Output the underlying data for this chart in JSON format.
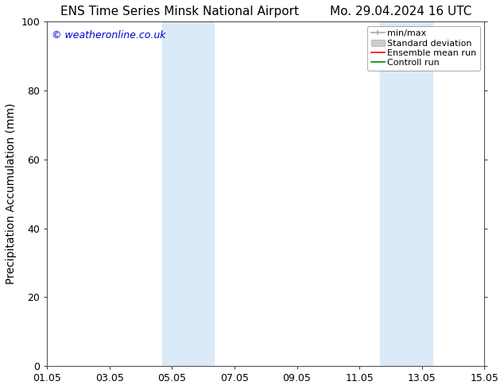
{
  "title_left": "ENS Time Series Minsk National Airport",
  "title_right": "Mo. 29.04.2024 16 UTC",
  "ylabel": "Precipitation Accumulation (mm)",
  "watermark": "© weatheronline.co.uk",
  "watermark_color": "#0000cc",
  "ylim": [
    0,
    100
  ],
  "xlim_start": 0.0,
  "xlim_end": 14.0,
  "xtick_positions": [
    0,
    2,
    4,
    6,
    8,
    10,
    12,
    14
  ],
  "xtick_labels": [
    "01.05",
    "03.05",
    "05.05",
    "07.05",
    "09.05",
    "11.05",
    "13.05",
    "15.05"
  ],
  "ytick_positions": [
    0,
    20,
    40,
    60,
    80,
    100
  ],
  "shaded_bands": [
    {
      "x_start": 3.67,
      "x_end": 5.33
    },
    {
      "x_start": 10.67,
      "x_end": 12.33
    }
  ],
  "shade_color": "#daeaf7",
  "shade_alpha": 1.0,
  "legend_labels": [
    "min/max",
    "Standard deviation",
    "Ensemble mean run",
    "Controll run"
  ],
  "legend_line_colors": [
    "#aaaaaa",
    "#cccccc",
    "#ff0000",
    "#008000"
  ],
  "background_color": "#ffffff",
  "plot_bg_color": "#ffffff",
  "title_fontsize": 11,
  "axis_label_fontsize": 10,
  "tick_fontsize": 9,
  "watermark_fontsize": 9,
  "legend_fontsize": 8
}
